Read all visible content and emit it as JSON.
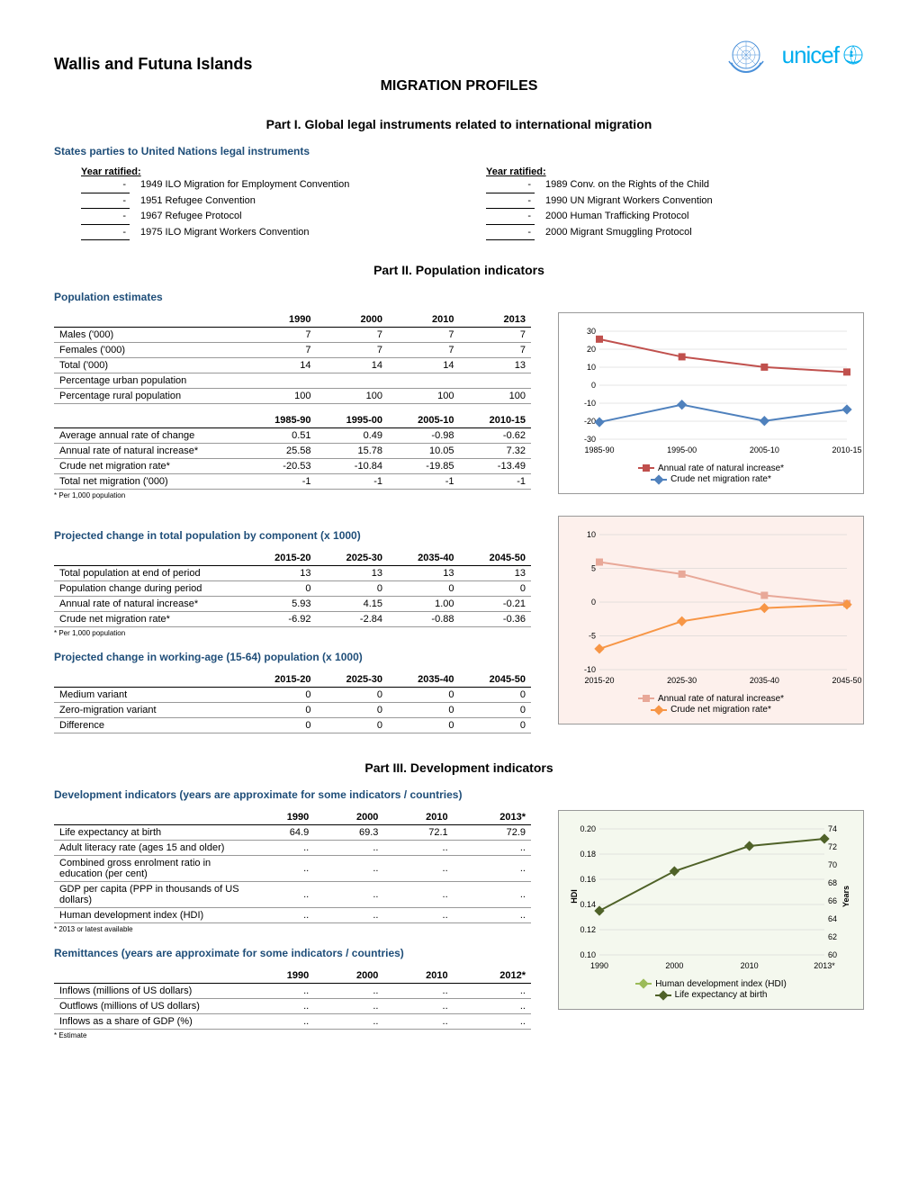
{
  "header": {
    "country": "Wallis and Futuna Islands",
    "main_title": "MIGRATION PROFILES",
    "un_logo_color": "#4a90d9",
    "unicef_color": "#00aeef",
    "unicef_text": "unicef"
  },
  "part1": {
    "title": "Part I. Global legal instruments related to international migration",
    "section": "States parties to United Nations legal instruments",
    "year_hdr": "Year ratified:",
    "left": [
      {
        "year": "-",
        "name": "1949 ILO Migration for Employment Convention"
      },
      {
        "year": "-",
        "name": "1951 Refugee Convention"
      },
      {
        "year": "-",
        "name": "1967 Refugee Protocol"
      },
      {
        "year": "-",
        "name": "1975 ILO Migrant Workers Convention"
      }
    ],
    "right": [
      {
        "year": "-",
        "name": "1989 Conv. on the Rights of the Child"
      },
      {
        "year": "-",
        "name": "1990 UN Migrant Workers Convention"
      },
      {
        "year": "-",
        "name": "2000 Human Trafficking Protocol"
      },
      {
        "year": "-",
        "name": "2000 Migrant Smuggling Protocol"
      }
    ]
  },
  "part2": {
    "title": "Part II. Population indicators",
    "pop_est": {
      "section": "Population estimates",
      "cols": [
        "1990",
        "2000",
        "2010",
        "2013"
      ],
      "rows": [
        {
          "label": "Males ('000)",
          "v": [
            "7",
            "7",
            "7",
            "7"
          ]
        },
        {
          "label": "Females ('000)",
          "v": [
            "7",
            "7",
            "7",
            "7"
          ]
        },
        {
          "label": "Total ('000)",
          "v": [
            "14",
            "14",
            "14",
            "13"
          ]
        },
        {
          "label": "Percentage urban population",
          "v": [
            "",
            "",
            "",
            ""
          ]
        },
        {
          "label": "Percentage rural population",
          "v": [
            "100",
            "100",
            "100",
            "100"
          ]
        }
      ],
      "cols2": [
        "1985-90",
        "1995-00",
        "2005-10",
        "2010-15"
      ],
      "rows2": [
        {
          "label": "Average annual rate of change",
          "v": [
            "0.51",
            "0.49",
            "-0.98",
            "-0.62"
          ]
        },
        {
          "label": "Annual rate of natural increase*",
          "v": [
            "25.58",
            "15.78",
            "10.05",
            "7.32"
          ]
        },
        {
          "label": "Crude net migration rate*",
          "v": [
            "-20.53",
            "-10.84",
            "-19.85",
            "-13.49"
          ]
        },
        {
          "label": "Total net migration ('000)",
          "v": [
            "-1",
            "-1",
            "-1",
            "-1"
          ]
        }
      ],
      "footnote": "* Per 1,000 population"
    },
    "chart1": {
      "categories": [
        "1985-90",
        "1995-00",
        "2005-10",
        "2010-15"
      ],
      "ymin": -30,
      "ymax": 30,
      "ystep": 10,
      "series": [
        {
          "name": "Annual rate of natural increase*",
          "color": "#c0504d",
          "marker": "square",
          "values": [
            25.58,
            15.78,
            10.05,
            7.32
          ]
        },
        {
          "name": "Crude net migration rate*",
          "color": "#4f81bd",
          "marker": "diamond",
          "values": [
            -20.53,
            -10.84,
            -19.85,
            -13.49
          ]
        }
      ]
    },
    "proj_total": {
      "section": "Projected change in total population by component (x 1000)",
      "cols": [
        "2015-20",
        "2025-30",
        "2035-40",
        "2045-50"
      ],
      "rows": [
        {
          "label": "Total population at end of period",
          "v": [
            "13",
            "13",
            "13",
            "13"
          ]
        },
        {
          "label": "Population change during period",
          "v": [
            "0",
            "0",
            "0",
            "0"
          ]
        },
        {
          "label": "Annual rate of natural increase*",
          "v": [
            "5.93",
            "4.15",
            "1.00",
            "-0.21"
          ]
        },
        {
          "label": "Crude net migration rate*",
          "v": [
            "-6.92",
            "-2.84",
            "-0.88",
            "-0.36"
          ]
        }
      ],
      "footnote": "* Per 1,000 population"
    },
    "proj_wa": {
      "section": "Projected change in working-age (15-64) population (x 1000)",
      "cols": [
        "2015-20",
        "2025-30",
        "2035-40",
        "2045-50"
      ],
      "rows": [
        {
          "label": "Medium variant",
          "v": [
            "0",
            "0",
            "0",
            "0"
          ]
        },
        {
          "label": "Zero-migration variant",
          "v": [
            "0",
            "0",
            "0",
            "0"
          ]
        },
        {
          "label": "Difference",
          "v": [
            "0",
            "0",
            "0",
            "0"
          ]
        }
      ]
    },
    "chart2": {
      "categories": [
        "2015-20",
        "2025-30",
        "2035-40",
        "2045-50"
      ],
      "ymin": -10,
      "ymax": 10,
      "ystep": 5,
      "bg": "#fdf0ec",
      "series": [
        {
          "name": "Annual rate of natural increase*",
          "color": "#e8a898",
          "marker": "square",
          "values": [
            5.93,
            4.15,
            1.0,
            -0.21
          ]
        },
        {
          "name": "Crude net migration rate*",
          "color": "#f79646",
          "marker": "diamond",
          "values": [
            -6.92,
            -2.84,
            -0.88,
            -0.36
          ]
        }
      ]
    }
  },
  "part3": {
    "title": "Part III. Development indicators",
    "dev": {
      "section": "Development indicators (years are approximate for some indicators / countries)",
      "cols": [
        "1990",
        "2000",
        "2010",
        "2013*"
      ],
      "rows": [
        {
          "label": "Life expectancy at birth",
          "v": [
            "64.9",
            "69.3",
            "72.1",
            "72.9"
          ]
        },
        {
          "label": "Adult literacy rate (ages 15 and older)",
          "v": [
            "..",
            "..",
            "..",
            ".."
          ]
        },
        {
          "label": "Combined gross enrolment ratio in education (per cent)",
          "v": [
            "..",
            "..",
            "..",
            ".."
          ]
        },
        {
          "label": "GDP per capita (PPP in thousands of US dollars)",
          "v": [
            "..",
            "..",
            "..",
            ".."
          ]
        },
        {
          "label": "Human development index (HDI)",
          "v": [
            "..",
            "..",
            "..",
            ".."
          ]
        }
      ],
      "footnote": "* 2013 or latest available"
    },
    "remit": {
      "section": "Remittances (years are approximate for some indicators / countries)",
      "cols": [
        "1990",
        "2000",
        "2010",
        "2012*"
      ],
      "rows": [
        {
          "label": "Inflows (millions of US dollars)",
          "v": [
            "..",
            "..",
            "..",
            ".."
          ]
        },
        {
          "label": "Outflows (millions of US dollars)",
          "v": [
            "..",
            "..",
            "..",
            ".."
          ]
        },
        {
          "label": "Inflows as a share of GDP (%)",
          "v": [
            "..",
            "..",
            "..",
            ".."
          ]
        }
      ],
      "footnote": "* Estimate"
    },
    "chart3": {
      "categories": [
        "1990",
        "2000",
        "2010",
        "2013*"
      ],
      "y1min": 0.1,
      "y1max": 0.2,
      "y1step": 0.02,
      "y2min": 60,
      "y2max": 74,
      "y2step": 2,
      "y1label": "HDI",
      "y2label": "Years",
      "bg": "#f4f8ee",
      "series": [
        {
          "name": "Human development index (HDI)",
          "color": "#9bbb59",
          "marker": "diamond",
          "axis": "y1",
          "values": [
            null,
            null,
            null,
            null
          ]
        },
        {
          "name": "Life expectancy at birth",
          "color": "#4f6228",
          "marker": "diamond",
          "axis": "y2",
          "values": [
            64.9,
            69.3,
            72.1,
            72.9
          ]
        }
      ]
    }
  }
}
